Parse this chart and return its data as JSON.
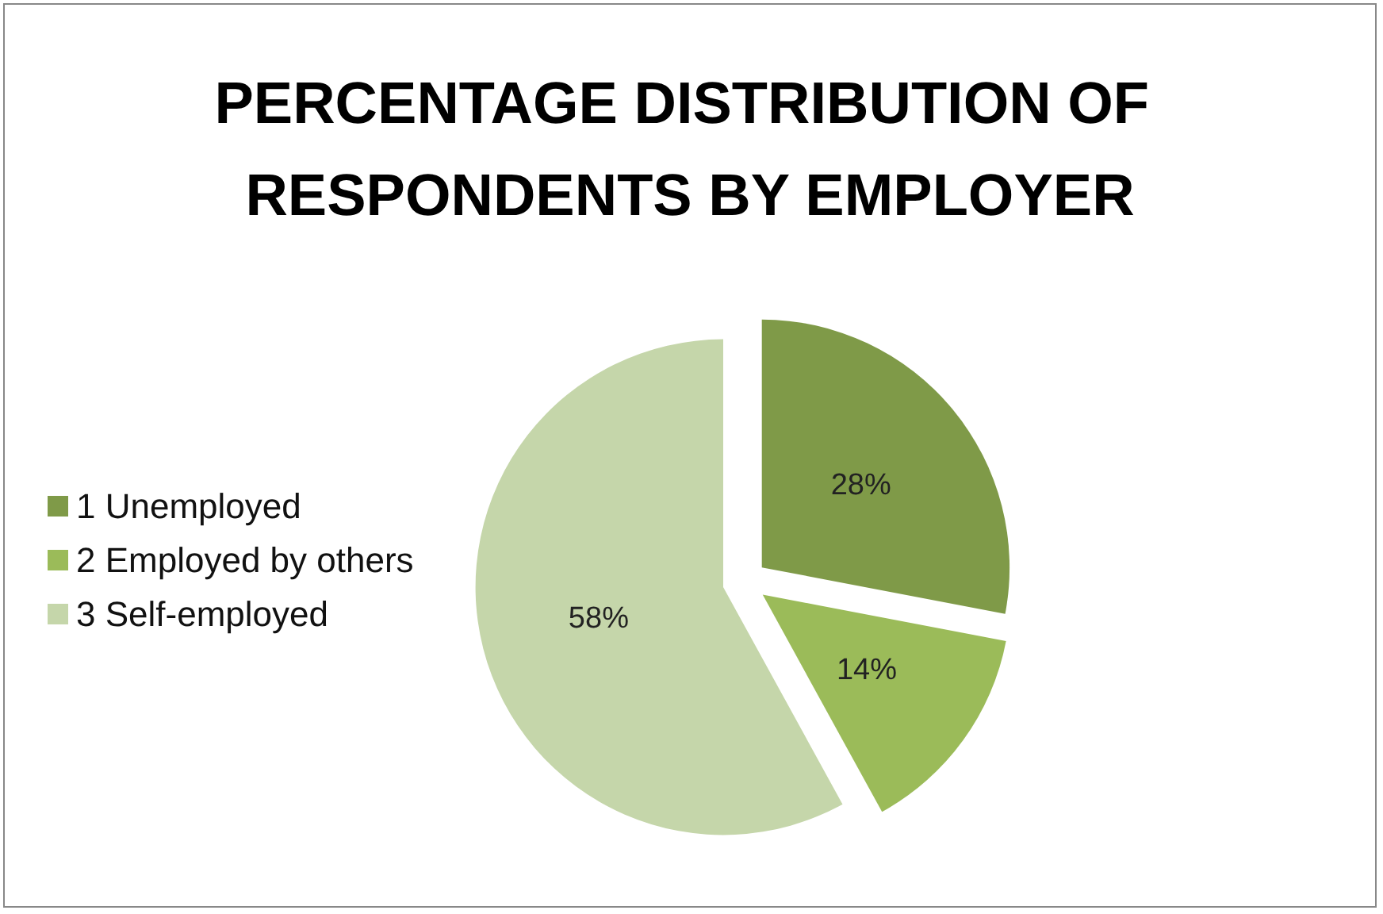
{
  "chart_data": {
    "type": "pie",
    "title": "PERCENTAGE DISTRIBUTION OF RESPONDENTS BY EMPLOYER",
    "categories": [
      "1 Unemployed",
      "2 Employed by others",
      "3 Self-employed"
    ],
    "values": [
      28,
      14,
      58
    ],
    "colors": [
      "#7f9a48",
      "#9bbb59",
      "#c5d6aa"
    ],
    "value_labels": [
      "28%",
      "14%",
      "58%"
    ],
    "legend": "left"
  }
}
